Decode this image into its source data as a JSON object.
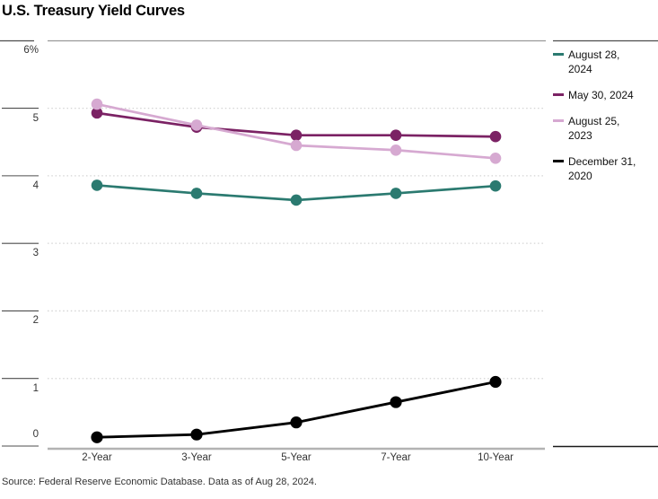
{
  "chart_data": {
    "type": "line",
    "title": "U.S. Treasury Yield Curves",
    "categories": [
      "2-Year",
      "3-Year",
      "5-Year",
      "7-Year",
      "10-Year"
    ],
    "xlabel": "",
    "ylabel": "",
    "ylim": [
      0,
      6
    ],
    "yticks": [
      {
        "value": 6,
        "label": "6%",
        "label_position": "below"
      },
      {
        "value": 5,
        "label": "5",
        "label_position": "below"
      },
      {
        "value": 4,
        "label": "4",
        "label_position": "below"
      },
      {
        "value": 3,
        "label": "3",
        "label_position": "below"
      },
      {
        "value": 2,
        "label": "2",
        "label_position": "below"
      },
      {
        "value": 1,
        "label": "1",
        "label_position": "below"
      },
      {
        "value": 0,
        "label": "0",
        "label_position": "above"
      }
    ],
    "grid": "horizontal-dotted",
    "legend_position": "right",
    "series": [
      {
        "name": "August 28, 2024",
        "color": "#2b7a70",
        "values": [
          3.86,
          3.74,
          3.64,
          3.74,
          3.85
        ]
      },
      {
        "name": "May 30, 2024",
        "color": "#7b2264",
        "values": [
          4.93,
          4.72,
          4.6,
          4.6,
          4.58
        ]
      },
      {
        "name": "August 25, 2023",
        "color": "#d6a9d1",
        "values": [
          5.06,
          4.75,
          4.45,
          4.38,
          4.26
        ]
      },
      {
        "name": "December 31, 2020",
        "color": "#000000",
        "values": [
          0.13,
          0.17,
          0.35,
          0.65,
          0.95
        ]
      }
    ],
    "source": "Source: Federal Reserve Economic Database. Data as of Aug 28, 2024.",
    "colors": {
      "top_rule": "#999999",
      "dark_rule": "#4d4d4d",
      "legend_bottom_rule": "#1a1a1a",
      "gridline": "#d4d4d4",
      "baseline": "#b3b3b3",
      "tick_label": "#333333"
    }
  }
}
